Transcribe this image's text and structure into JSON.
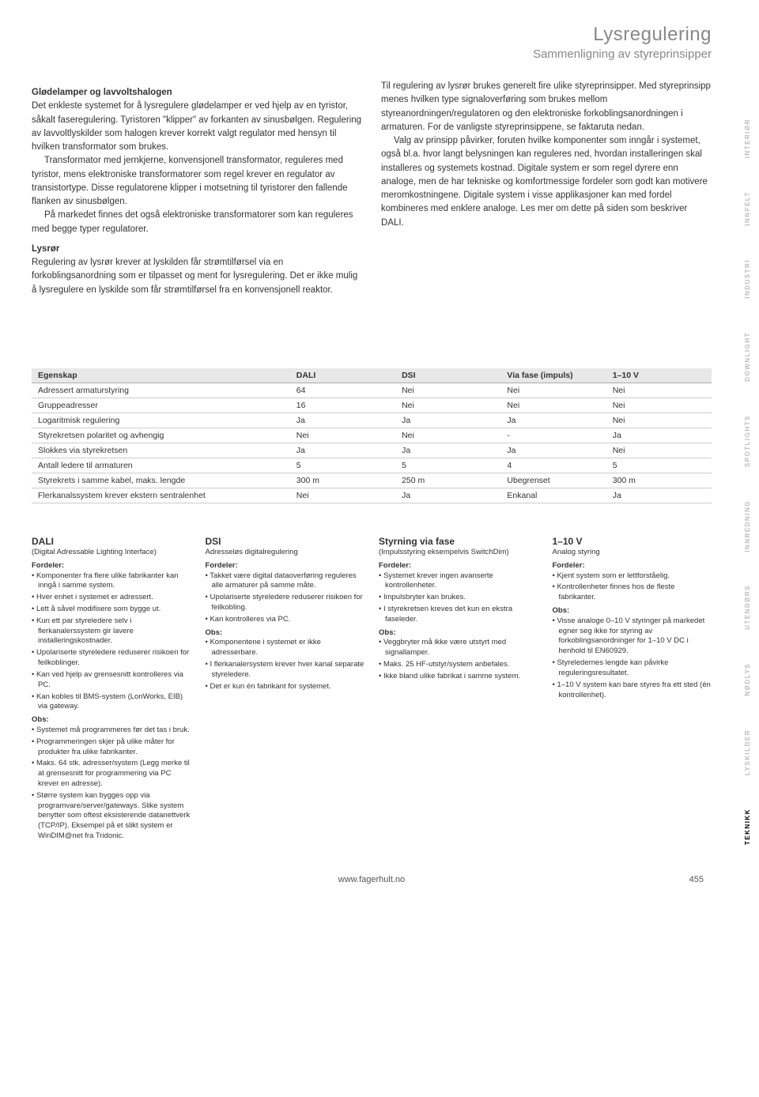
{
  "header": {
    "title": "Lysregulering",
    "subtitle": "Sammenligning av styreprinsipper"
  },
  "intro": {
    "left": {
      "h": "Glødelamper og lavvoltshalogen",
      "p1": "Det enkleste systemet for å lysregulere glødelamper er ved hjelp av en tyristor, såkalt faseregulering. Tyristoren \"klipper\" av forkanten av sinusbølgen. Regulering av lavvoltlyskilder som halogen krever korrekt valgt regulator med hensyn til hvilken transformator som brukes.",
      "p2": "Transformator med jernkjerne, konvensjonell transformator, reguleres med tyristor, mens elektroniske transformatorer som regel krever en regulator av transistortype. Disse regulatorene klipper i motsetning til tyristorer den fallende flanken av sinusbølgen.",
      "p3": "På markedet finnes det også elektroniske transformatorer som kan reguleres med begge typer regulatorer."
    },
    "right": {
      "p1": "Til regulering av lysrør brukes generelt fire ulike styreprinsipper. Med styreprinsipp menes hvilken type signaloverføring som brukes mellom styreanordningen/regulatoren og den elektroniske forkoblingsanordningen i armaturen. For de vanligste styreprinsippene, se faktaruta nedan.",
      "p2": "Valg av prinsipp påvirker, foruten hvilke komponenter som inngår i systemet, også bl.a. hvor langt belysningen kan reguleres ned, hvordan installeringen skal installeres og systemets kostnad. Digitale system er som regel dyrere enn analoge, men de har tekniske og komfortmessige fordeler som godt kan motivere meromkostningene. Digitale system i visse applikasjoner kan med fordel kombineres med enklere analoge. Les mer om dette på siden som beskriver DALI."
    }
  },
  "lysror": {
    "h": "Lysrør",
    "p": "Regulering av lysrør krever at lyskilden får strømtilførsel via en forkoblingsanordning som er tilpasset og ment for lysregulering. Det er ikke mulig å lysregulere en lyskilde som får strømtilførsel fra en konvensjonell reaktor."
  },
  "table": {
    "columns": [
      "Egenskap",
      "DALI",
      "DSI",
      "Via fase (impuls)",
      "1–10 V"
    ],
    "rows": [
      [
        "Adressert armaturstyring",
        "64",
        "Nei",
        "Nei",
        "Nei"
      ],
      [
        "Gruppeadresser",
        "16",
        "Nei",
        "Nei",
        "Nei"
      ],
      [
        "Logaritmisk regulering",
        "Ja",
        "Ja",
        "Ja",
        "Nei"
      ],
      [
        "Styrekretsen polaritet og avhengig",
        "Nei",
        "Nei",
        "-",
        "Ja"
      ],
      [
        "Slokkes via styrekretsen",
        "Ja",
        "Ja",
        "Ja",
        "Nei"
      ],
      [
        "Antall ledere til armaturen",
        "5",
        "5",
        "4",
        "5"
      ],
      [
        "Styrekrets i samme kabel, maks. lengde",
        "300 m",
        "250 m",
        "Ubegrenset",
        "300 m"
      ],
      [
        "Flerkanalssystem krever ekstern sentralenhet",
        "Nei",
        "Ja",
        "Enkanal",
        "Ja"
      ]
    ]
  },
  "systems": [
    {
      "title": "DALI",
      "sub": "(Digital Adressable Lighting Interface)",
      "fordeler": [
        "Komponenter fra flere ulike fabrikanter kan inngå i samme system.",
        "Hver enhet i systemet er adressert.",
        "Lett å såvel modifisere som bygge ut.",
        "Kun ett par styreledere selv i flerkanalerssystem gir lavere installeringskostnader.",
        "Upolariserte styreledere reduserer risikoen for feilkoblinger.",
        "Kan ved hjelp av grensesnitt kontrolleres via PC.",
        "Kan kobles til BMS-system (LonWorks, EIB) via gateway."
      ],
      "obs": [
        "Systemet må programmeres før det tas i bruk.",
        "Programmeringen skjer på ulike måter for produkter fra ulike fabrikanter.",
        "Maks. 64 stk. adresser/system (Legg merke til at grensesnitt for programmering via PC krever en adresse).",
        "Større system kan bygges opp via programvare/server/gateways. Slike system benytter som oftest eksisterende datanettverk (TCP/IP). Eksempel på et slikt system er WinDIM@net fra Tridonic."
      ]
    },
    {
      "title": "DSI",
      "sub": "Adresseløs digitalregulering",
      "fordeler": [
        "Takket være digital dataoverføring reguleres alle armaturer på samme måte.",
        "Upolariserte styreledere reduserer risikoen for feilkobling.",
        "Kan kontrolleres via PC."
      ],
      "obs": [
        "Komponentene i systemet er ikke adresserbare.",
        "I flerkanalersystem krever hver kanal separate styreledere.",
        "Det er kun én fabrikant for systemet."
      ]
    },
    {
      "title": "Styrning via fase",
      "sub": "(Impulsstyring eksempelvis SwitchDim)",
      "fordeler": [
        "Systemet krever ingen avanserte kontrollenheter.",
        "Impulsbryter kan brukes.",
        "I styrekretsen kreves det kun en ekstra faseleder."
      ],
      "obs": [
        "Veggbryter må ikke være utstyrt med signallamper.",
        "Maks. 25 HF-utstyr/system anbefales.",
        "Ikke bland ulike fabrikat i samme system."
      ]
    },
    {
      "title": "1–10 V",
      "sub": "Analog styring",
      "fordeler": [
        "Kjent system som er lettforståelig.",
        "Kontrollenheter finnes hos de fleste fabrikanter."
      ],
      "obs": [
        "Visse analoge 0–10 V styringer på markedet egner seg ikke for styring av forkoblingsanordninger for 1–10 V DC i henhold til EN60929.",
        "Styreledernes lengde kan påvirke reguleringsresultatet.",
        "1–10 V system kan bare styres fra ett sted (én kontrollenhet)."
      ]
    }
  ],
  "sideTabs": [
    "INTERIØR",
    "INNFELT",
    "INDUSTRI",
    "DOWNLIGHT",
    "SPOTLIGHTS",
    "INNREDNING",
    "UTENDØRS",
    "NØDLYS",
    "LYSKILDER",
    "TEKNIKK"
  ],
  "sideActive": 9,
  "labels": {
    "fordeler": "Fordeler:",
    "obs": "Obs:"
  },
  "footer": {
    "url": "www.fagerhult.no",
    "page": "455"
  }
}
